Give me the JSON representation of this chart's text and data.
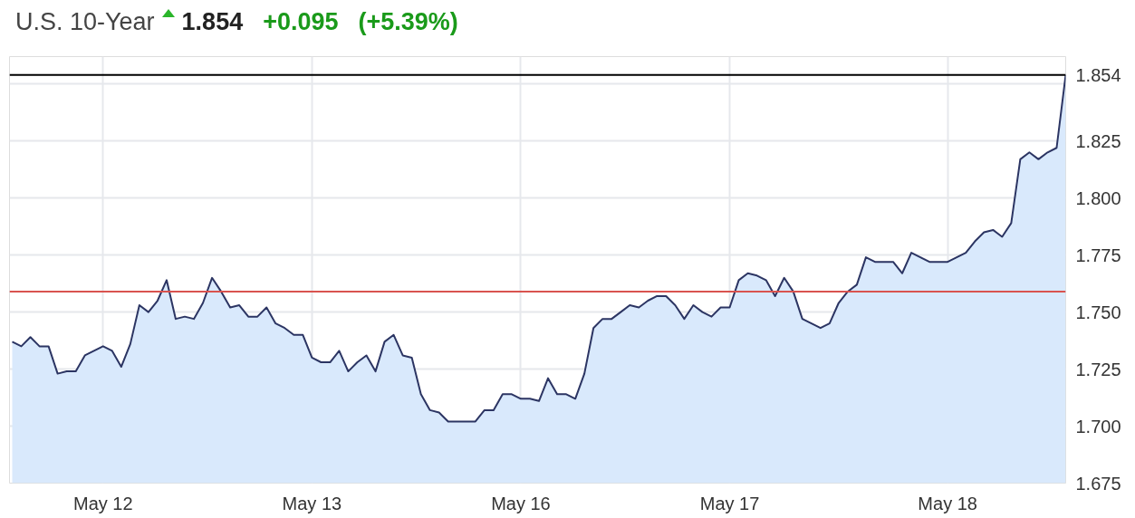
{
  "chart_data": {
    "type": "area",
    "title": "U.S. 10-Year",
    "annotations": [
      "1.854",
      "+0.095",
      "(+5.39%)"
    ],
    "categories": [
      null,
      null,
      null,
      null,
      null,
      null,
      null,
      null,
      null,
      null,
      "May 12",
      null,
      null,
      null,
      null,
      null,
      null,
      null,
      null,
      null,
      null,
      null,
      null,
      null,
      null,
      null,
      null,
      null,
      null,
      null,
      null,
      null,
      null,
      "May 13",
      null,
      null,
      null,
      null,
      null,
      null,
      null,
      null,
      null,
      null,
      null,
      null,
      null,
      null,
      null,
      null,
      null,
      null,
      null,
      null,
      null,
      null,
      "May 16",
      null,
      null,
      null,
      null,
      null,
      null,
      null,
      null,
      null,
      null,
      null,
      null,
      null,
      null,
      null,
      null,
      null,
      null,
      null,
      null,
      null,
      null,
      "May 17",
      null,
      null,
      null,
      null,
      null,
      null,
      null,
      null,
      null,
      null,
      null,
      null,
      null,
      null,
      null,
      null,
      null,
      null,
      null,
      null,
      null,
      null,
      null,
      "May 18",
      null,
      null,
      null,
      null,
      null,
      null,
      null,
      null,
      null,
      null,
      null,
      null,
      null
    ],
    "series": [
      {
        "color": "#2c3563",
        "values": [
          1.737,
          1.735,
          1.739,
          1.735,
          1.735,
          1.723,
          1.724,
          1.724,
          1.731,
          1.733,
          1.735,
          1.733,
          1.726,
          1.736,
          1.753,
          1.75,
          1.755,
          1.764,
          1.747,
          1.748,
          1.747,
          1.754,
          1.765,
          1.759,
          1.752,
          1.753,
          1.748,
          1.748,
          1.752,
          1.745,
          1.743,
          1.74,
          1.74,
          1.73,
          1.728,
          1.728,
          1.733,
          1.724,
          1.728,
          1.731,
          1.724,
          1.737,
          1.74,
          1.731,
          1.73,
          1.714,
          1.707,
          1.706,
          1.702,
          1.702,
          1.702,
          1.702,
          1.707,
          1.707,
          1.714,
          1.714,
          1.712,
          1.712,
          1.711,
          1.721,
          1.714,
          1.714,
          1.712,
          1.723,
          1.743,
          1.747,
          1.747,
          1.75,
          1.753,
          1.752,
          1.755,
          1.757,
          1.757,
          1.753,
          1.747,
          1.753,
          1.75,
          1.748,
          1.752,
          1.752,
          1.764,
          1.767,
          1.766,
          1.764,
          1.757,
          1.765,
          1.759,
          1.747,
          1.745,
          1.743,
          1.745,
          1.754,
          1.759,
          1.762,
          1.774,
          1.772,
          1.772,
          1.772,
          1.767,
          1.776,
          1.774,
          1.772,
          1.772,
          1.772,
          1.774,
          1.776,
          1.781,
          1.785,
          1.786,
          1.783,
          1.789,
          1.817,
          1.82,
          1.817,
          1.82,
          1.822,
          1.854
        ]
      }
    ],
    "ylim": [
      1.675,
      1.862
    ],
    "yticks": [
      {
        "value": 1.675,
        "label": "1.675"
      },
      {
        "value": 1.7,
        "label": "1.700"
      },
      {
        "value": 1.725,
        "label": "1.725"
      },
      {
        "value": 1.75,
        "label": "1.750"
      },
      {
        "value": 1.775,
        "label": "1.775"
      },
      {
        "value": 1.8,
        "label": "1.800"
      },
      {
        "value": 1.825,
        "label": "1.825"
      },
      {
        "value": 1.85,
        "label": null
      }
    ],
    "ref_lines": [
      {
        "axis": "y",
        "value": 1.854,
        "label": "1.854",
        "color": "#000000"
      },
      {
        "axis": "y",
        "value": 1.759,
        "color": "#d9534f"
      }
    ],
    "grid": true
  }
}
